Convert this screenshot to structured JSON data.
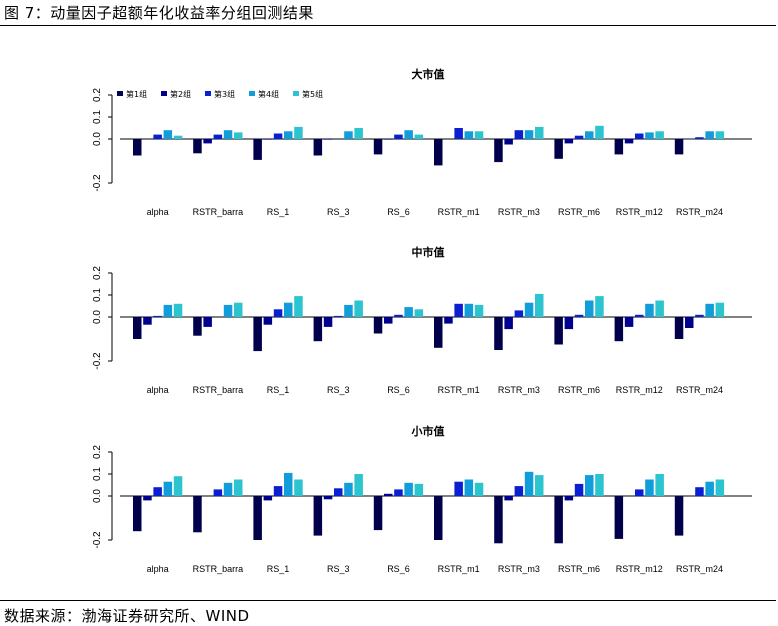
{
  "figure": {
    "title": "图 7：动量因子超额年化收益率分组回测结果",
    "source": "数据来源：渤海证券研究所、WIND"
  },
  "colors": [
    "#00004b",
    "#00008f",
    "#0a1fd2",
    "#119dd9",
    "#2cc4cf"
  ],
  "chart_data": [
    {
      "type": "bar",
      "title": "大市值",
      "categories": [
        "alpha",
        "RSTR_barra",
        "RS_1",
        "RS_3",
        "RS_6",
        "RSTR_m1",
        "RSTR_m3",
        "RSTR_m6",
        "RSTR_m12",
        "RSTR_m24"
      ],
      "ylim": [
        -0.25,
        0.25
      ],
      "yticks": [
        "-0.2",
        "0.0",
        "0.1",
        "0.2"
      ],
      "legend": "top-left",
      "series": [
        {
          "name": "第1组",
          "values": [
            -0.075,
            -0.065,
            -0.095,
            -0.075,
            -0.07,
            -0.12,
            -0.105,
            -0.09,
            -0.07,
            -0.07
          ]
        },
        {
          "name": "第2组",
          "values": [
            0.0,
            -0.02,
            -0.003,
            -0.003,
            -0.003,
            0.0,
            -0.025,
            -0.02,
            -0.02,
            -0.002
          ]
        },
        {
          "name": "第3组",
          "values": [
            0.02,
            0.02,
            0.025,
            0.0,
            0.02,
            0.05,
            0.04,
            0.015,
            0.025,
            0.008
          ]
        },
        {
          "name": "第4组",
          "values": [
            0.04,
            0.04,
            0.035,
            0.035,
            0.04,
            0.035,
            0.04,
            0.035,
            0.03,
            0.035
          ]
        },
        {
          "name": "第5组",
          "values": [
            0.015,
            0.03,
            0.055,
            0.05,
            0.02,
            0.035,
            0.055,
            0.06,
            0.035,
            0.035
          ]
        }
      ]
    },
    {
      "type": "bar",
      "title": "中市值",
      "categories": [
        "alpha",
        "RSTR_barra",
        "RS_1",
        "RS_3",
        "RS_6",
        "RSTR_m1",
        "RSTR_m3",
        "RSTR_m6",
        "RSTR_m12",
        "RSTR_m24"
      ],
      "ylim": [
        -0.25,
        0.25
      ],
      "yticks": [
        "-0.2",
        "0.0",
        "0.1",
        "0.2"
      ],
      "series": [
        {
          "name": "第1组",
          "values": [
            -0.1,
            -0.085,
            -0.155,
            -0.11,
            -0.075,
            -0.14,
            -0.15,
            -0.125,
            -0.11,
            -0.1
          ]
        },
        {
          "name": "第2组",
          "values": [
            -0.035,
            -0.045,
            -0.035,
            -0.045,
            -0.03,
            -0.03,
            -0.055,
            -0.055,
            -0.045,
            -0.05
          ]
        },
        {
          "name": "第3组",
          "values": [
            0.005,
            0.0,
            0.035,
            0.005,
            0.01,
            0.06,
            0.03,
            0.01,
            0.01,
            0.01
          ]
        },
        {
          "name": "第4组",
          "values": [
            0.055,
            0.055,
            0.065,
            0.055,
            0.045,
            0.06,
            0.065,
            0.075,
            0.06,
            0.06
          ]
        },
        {
          "name": "第5组",
          "values": [
            0.06,
            0.065,
            0.095,
            0.075,
            0.035,
            0.055,
            0.105,
            0.095,
            0.075,
            0.065
          ]
        }
      ]
    },
    {
      "type": "bar",
      "title": "小市值",
      "categories": [
        "alpha",
        "RSTR_barra",
        "RS_1",
        "RS_3",
        "RS_6",
        "RSTR_m1",
        "RSTR_m3",
        "RSTR_m6",
        "RSTR_m12",
        "RSTR_m24"
      ],
      "ylim": [
        -0.25,
        0.25
      ],
      "yticks": [
        "-0.2",
        "0.0",
        "0.1",
        "0.2"
      ],
      "series": [
        {
          "name": "第1组",
          "values": [
            -0.16,
            -0.165,
            -0.2,
            -0.18,
            -0.155,
            -0.2,
            -0.215,
            -0.215,
            -0.195,
            -0.18
          ]
        },
        {
          "name": "第2组",
          "values": [
            -0.02,
            0.0,
            -0.02,
            -0.015,
            0.01,
            0.0,
            -0.02,
            -0.02,
            0.0,
            0.0
          ]
        },
        {
          "name": "第3组",
          "values": [
            0.04,
            0.03,
            0.045,
            0.035,
            0.03,
            0.065,
            0.045,
            0.055,
            0.03,
            0.04
          ]
        },
        {
          "name": "第4组",
          "values": [
            0.065,
            0.06,
            0.105,
            0.06,
            0.06,
            0.075,
            0.11,
            0.095,
            0.075,
            0.065
          ]
        },
        {
          "name": "第5组",
          "values": [
            0.09,
            0.075,
            0.075,
            0.1,
            0.055,
            0.06,
            0.095,
            0.1,
            0.1,
            0.075
          ]
        }
      ]
    }
  ]
}
